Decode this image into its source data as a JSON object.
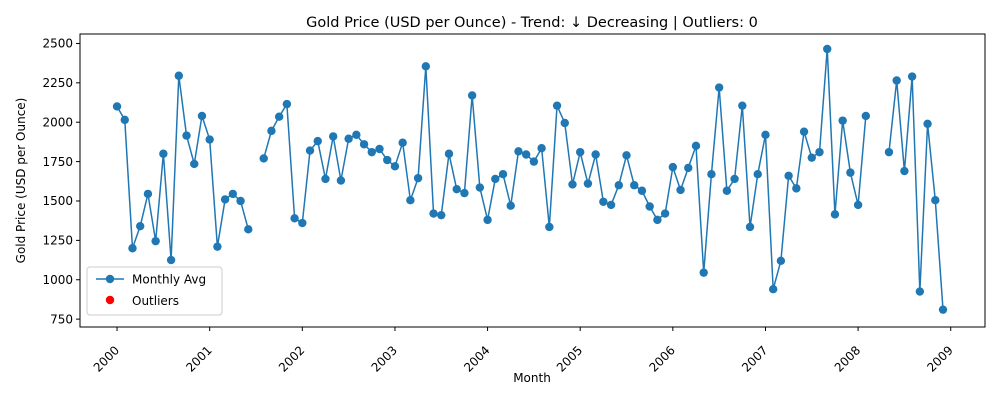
{
  "chart_data": {
    "type": "line",
    "title": "Gold Price (USD per Ounce) - Trend: ↓ Decreasing | Outliers: 0",
    "xlabel": "Month",
    "ylabel": "Gold Price (USD per Ounce)",
    "x_start_year": 2000,
    "x_tick_labels": [
      "2000",
      "2001",
      "2002",
      "2003",
      "2004",
      "2005",
      "2006",
      "2007",
      "2008",
      "2009"
    ],
    "y_ticks": [
      750,
      1000,
      1250,
      1500,
      1750,
      2000,
      2250,
      2500
    ],
    "y_tick_labels": [
      "750",
      "1000",
      "1250",
      "1500",
      "1750",
      "2000",
      "2250",
      "2500"
    ],
    "ylim": [
      700,
      2560
    ],
    "xlim": [
      1999.6,
      2009.37
    ],
    "grid": false,
    "legend_position": "lower-left",
    "series": [
      {
        "name": "Monthly Avg",
        "color": "#1f77b4",
        "marker": "circle",
        "values": [
          2100,
          2015,
          1200,
          1340,
          1545,
          1245,
          1800,
          1125,
          2295,
          1915,
          1735,
          2040,
          1890,
          1210,
          1510,
          1545,
          1500,
          1320,
          null,
          1770,
          1945,
          2035,
          2115,
          1390,
          1360,
          1820,
          1880,
          1640,
          1910,
          1630,
          1895,
          1920,
          1860,
          1810,
          1830,
          1760,
          1720,
          1870,
          1505,
          1645,
          2355,
          1420,
          1410,
          1800,
          1575,
          1550,
          2170,
          1585,
          1380,
          1640,
          1670,
          1470,
          1815,
          1795,
          1750,
          1835,
          1335,
          2105,
          1995,
          1605,
          1810,
          1610,
          1795,
          1495,
          1475,
          1600,
          1790,
          1600,
          1565,
          1465,
          1380,
          1420,
          1715,
          1570,
          1710,
          1850,
          1045,
          1670,
          2220,
          1565,
          1640,
          2105,
          1335,
          1670,
          1920,
          940,
          1120,
          1660,
          1580,
          1940,
          1775,
          1810,
          2465,
          1415,
          2010,
          1680,
          1475,
          2040,
          null,
          null,
          1810,
          2265,
          1690,
          2290,
          925,
          1990,
          1505,
          810
        ]
      },
      {
        "name": "Outliers",
        "color": "#ff0000",
        "marker": "circle",
        "values": []
      }
    ]
  }
}
